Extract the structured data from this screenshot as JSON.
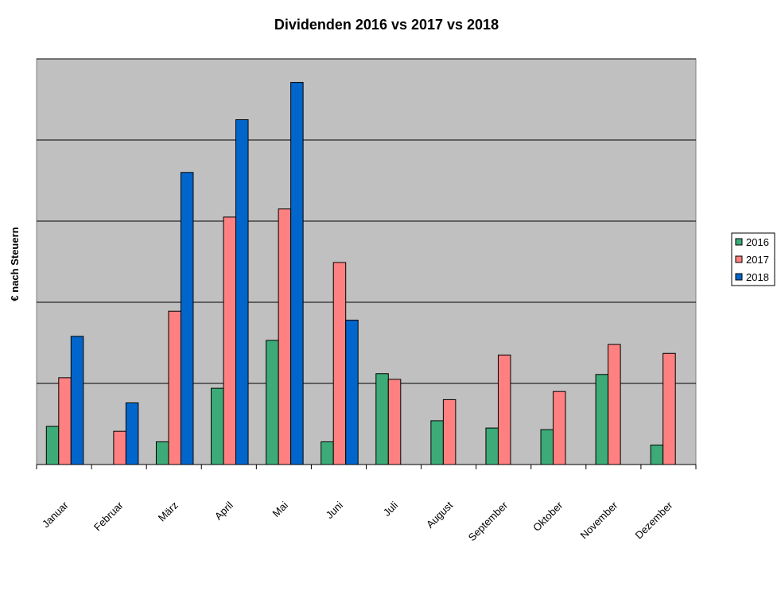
{
  "chart_data": {
    "type": "bar",
    "title": "Dividenden 2016 vs 2017 vs 2018",
    "xlabel": "",
    "ylabel": "€ nach Steuern",
    "categories": [
      "Januar",
      "Februar",
      "März",
      "April",
      "Mai",
      "Juni",
      "Juli",
      "August",
      "September",
      "Oktober",
      "November",
      "Dezember"
    ],
    "series": [
      {
        "name": "2016",
        "color": "#3cab78",
        "values": [
          0.47,
          null,
          0.28,
          0.94,
          1.53,
          0.28,
          1.12,
          0.54,
          0.45,
          0.43,
          1.11,
          0.24
        ]
      },
      {
        "name": "2017",
        "color": "#ff8080",
        "values": [
          1.07,
          0.41,
          1.89,
          3.05,
          3.15,
          2.49,
          1.05,
          0.8,
          1.35,
          0.9,
          1.48,
          1.37
        ]
      },
      {
        "name": "2018",
        "color": "#0066cc",
        "values": [
          1.58,
          0.76,
          3.6,
          4.25,
          4.71,
          1.78,
          null,
          null,
          null,
          null,
          null,
          null
        ]
      }
    ],
    "ylim": [
      0,
      5
    ],
    "grid": true,
    "legend": "right"
  }
}
